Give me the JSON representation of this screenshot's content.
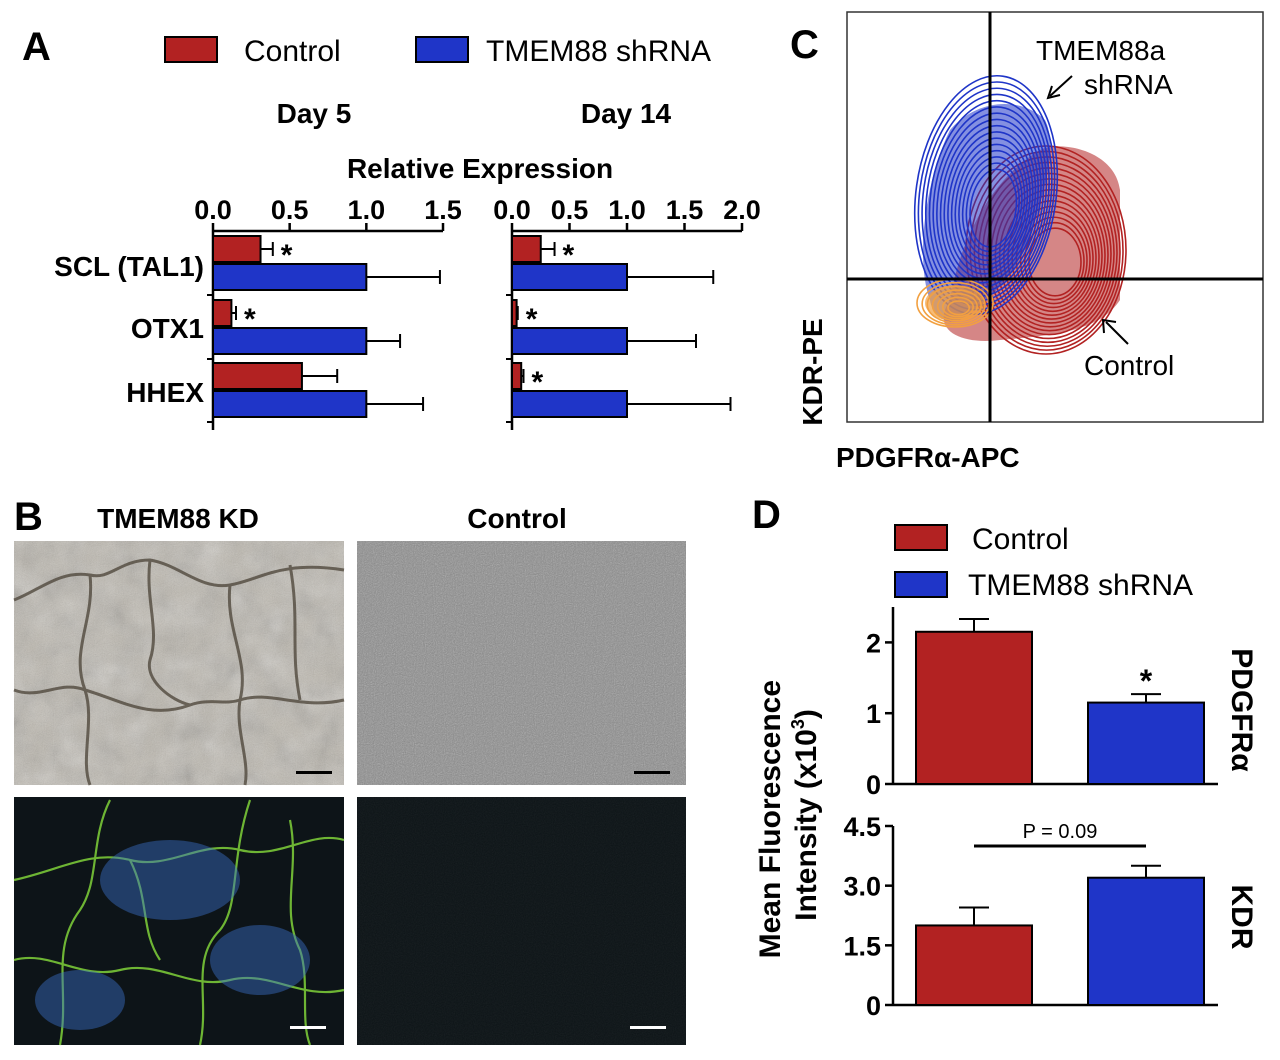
{
  "colors": {
    "control": "#B22222",
    "shrna": "#1F35C8",
    "orange": "#F2A040",
    "axis": "#000000"
  },
  "panel_labels": {
    "a": "A",
    "b": "B",
    "c": "C",
    "d": "D"
  },
  "legend_a": {
    "control": "Control",
    "shrna": "TMEM88 shRNA"
  },
  "legend_d": {
    "control": "Control",
    "shrna": "TMEM88 shRNA"
  },
  "panel_b": {
    "tmem88_kd": "TMEM88 KD",
    "control": "Control"
  },
  "panel_c": {
    "xlabel": "PDGFRα-APC",
    "ylabel": "KDR-PE",
    "annot_shrna_1": "TMEM88a",
    "annot_shrna_2": "shRNA",
    "annot_control": "Control"
  },
  "chart_data": [
    {
      "type": "bar",
      "panel": "A",
      "title": "Relative Expression",
      "subtitle": "Day 5",
      "categories": [
        "SCL (TAL1)",
        "OTX1",
        "HHEX"
      ],
      "xlim": [
        0,
        1.5
      ],
      "xticks": [
        "0.0",
        "0.5",
        "1.0",
        "1.5"
      ],
      "series": [
        {
          "name": "Control",
          "values": [
            0.31,
            0.12,
            0.58
          ],
          "errors": [
            0.08,
            0.03,
            0.23
          ],
          "sig": [
            "*",
            "*",
            ""
          ]
        },
        {
          "name": "TMEM88 shRNA",
          "values": [
            1.0,
            1.0,
            1.0
          ],
          "errors": [
            0.48,
            0.22,
            0.37
          ],
          "sig": [
            "",
            "",
            ""
          ]
        }
      ]
    },
    {
      "type": "bar",
      "panel": "A",
      "title": "",
      "subtitle": "Day 14",
      "categories": [
        "SCL (TAL1)",
        "OTX1",
        "HHEX"
      ],
      "xlim": [
        0,
        2.0
      ],
      "xticks": [
        "0.0",
        "0.5",
        "1.0",
        "1.5",
        "2.0"
      ],
      "series": [
        {
          "name": "Control",
          "values": [
            0.25,
            0.04,
            0.08
          ],
          "errors": [
            0.12,
            0.01,
            0.02
          ],
          "sig": [
            "*",
            "*",
            "*"
          ]
        },
        {
          "name": "TMEM88 shRNA",
          "values": [
            1.0,
            1.0,
            1.0
          ],
          "errors": [
            0.75,
            0.6,
            0.9
          ],
          "sig": [
            "",
            "",
            ""
          ]
        }
      ]
    },
    {
      "type": "bar",
      "panel": "D",
      "side_label": "PDGFRα",
      "categories": [
        "Control",
        "TMEM88 shRNA"
      ],
      "ylim": [
        0,
        2.5
      ],
      "yticks": [
        "0",
        "1",
        "2"
      ],
      "values": [
        2.15,
        1.15
      ],
      "errors": [
        0.18,
        0.12
      ],
      "sig": [
        "",
        "*"
      ]
    },
    {
      "type": "bar",
      "panel": "D",
      "side_label": "KDR",
      "categories": [
        "Control",
        "TMEM88 shRNA"
      ],
      "ylim": [
        0,
        4.5
      ],
      "yticks": [
        "0",
        "1.5",
        "3.0",
        "4.5"
      ],
      "values": [
        2.0,
        3.2
      ],
      "errors": [
        0.45,
        0.3
      ],
      "bracket_label": "P = 0.09"
    }
  ],
  "panel_d_ylabel_1": "Mean Fluorescence",
  "panel_d_ylabel_2": "Intensity (x10",
  "panel_d_ylabel_sup": "3",
  "panel_d_ylabel_3": ")"
}
